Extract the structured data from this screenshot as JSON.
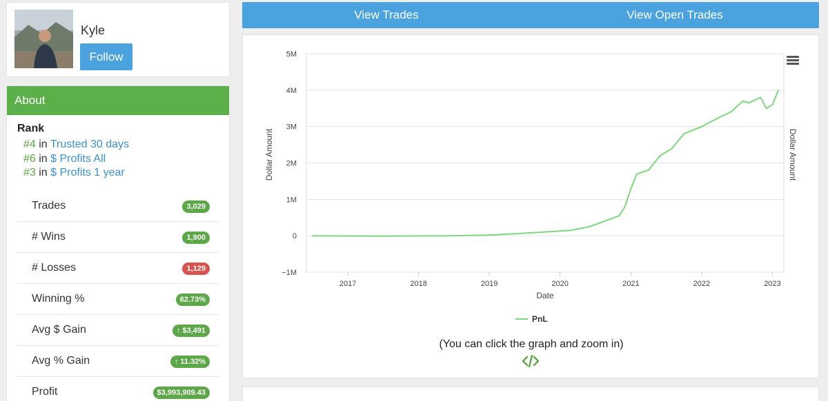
{
  "profile": {
    "username": "Kyle",
    "follow_label": "Follow"
  },
  "about": {
    "header": "About",
    "rank_title": "Rank",
    "ranks": [
      {
        "position": "#4",
        "in": "in",
        "category": "Trusted 30 days"
      },
      {
        "position": "#6",
        "in": "in",
        "category": "$ Profits All"
      },
      {
        "position": "#3",
        "in": "in",
        "category": "$ Profits 1 year"
      }
    ],
    "stats": [
      {
        "label": "Trades",
        "value": "3,029",
        "status": "positive"
      },
      {
        "label": "# Wins",
        "value": "1,900",
        "status": "positive"
      },
      {
        "label": "# Losses",
        "value": "1,129",
        "status": "negative"
      },
      {
        "label": "Winning %",
        "value": "62.73%",
        "status": "positive"
      },
      {
        "label": "Avg $ Gain",
        "value": "↑ $3,491",
        "status": "positive"
      },
      {
        "label": "Avg % Gain",
        "value": "↑ 11.32%",
        "status": "positive"
      },
      {
        "label": "Profit",
        "value": "$3,993,909.43",
        "status": "positive"
      }
    ]
  },
  "tabs": [
    {
      "label": "View Trades"
    },
    {
      "label": "View Open Trades"
    }
  ],
  "chart_hint": "(You can click the graph and zoom in)",
  "colors": {
    "accent_blue": "#4aa3df",
    "about_green": "#5cb04a",
    "badge_green": "#5ca747",
    "badge_red": "#d9534f",
    "series_line": "#7ed67e"
  },
  "chart_data": {
    "type": "line",
    "xlabel": "Date",
    "ylabel": "Dollar Amount",
    "ylabel_right": "Dollar Amount",
    "x_tick_labels": [
      "2017",
      "2018",
      "2019",
      "2020",
      "2021",
      "2022",
      "2023"
    ],
    "y_tick_labels": [
      "5M",
      "4M",
      "3M",
      "2M",
      "1M",
      "0",
      "−1M"
    ],
    "xlim": [
      "2016-06-01",
      "2023-03-01"
    ],
    "ylim": [
      -1000000,
      5000000
    ],
    "grid": true,
    "legend_position": "bottom-center",
    "series": [
      {
        "name": "PnL",
        "color": "#7ed67e",
        "points": [
          [
            "2016-07-01",
            0
          ],
          [
            "2017-06-01",
            -10000
          ],
          [
            "2018-06-01",
            0
          ],
          [
            "2019-01-01",
            20000
          ],
          [
            "2019-06-01",
            60000
          ],
          [
            "2019-10-01",
            100000
          ],
          [
            "2020-03-01",
            150000
          ],
          [
            "2020-06-01",
            250000
          ],
          [
            "2020-09-01",
            430000
          ],
          [
            "2020-11-01",
            550000
          ],
          [
            "2020-12-01",
            800000
          ],
          [
            "2021-01-01",
            1300000
          ],
          [
            "2021-02-01",
            1700000
          ],
          [
            "2021-04-01",
            1800000
          ],
          [
            "2021-06-01",
            2200000
          ],
          [
            "2021-08-01",
            2400000
          ],
          [
            "2021-10-01",
            2800000
          ],
          [
            "2022-01-01",
            3000000
          ],
          [
            "2022-04-01",
            3250000
          ],
          [
            "2022-06-01",
            3400000
          ],
          [
            "2022-08-01",
            3700000
          ],
          [
            "2022-09-01",
            3650000
          ],
          [
            "2022-11-01",
            3800000
          ],
          [
            "2022-12-01",
            3500000
          ],
          [
            "2023-01-01",
            3600000
          ],
          [
            "2023-02-01",
            4000000
          ]
        ]
      }
    ]
  }
}
